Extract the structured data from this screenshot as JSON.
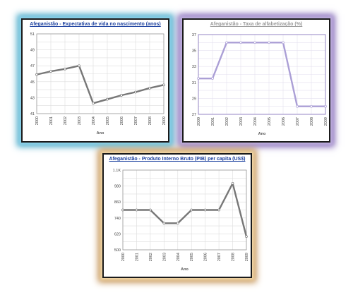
{
  "chart_data": [
    {
      "type": "line",
      "title": "Afeganistão - Expectativa de vida no nascimento (anos)",
      "xlabel": "Ano",
      "ylabel": "",
      "categories": [
        "2000",
        "2001",
        "2002",
        "2003",
        "2004",
        "2005",
        "2006",
        "2007",
        "2008",
        "2009"
      ],
      "series": [
        {
          "values": [
            45.9,
            46.3,
            46.6,
            47.0,
            42.3,
            42.8,
            43.3,
            43.7,
            44.2,
            44.6
          ]
        }
      ],
      "ylim": [
        41,
        51
      ],
      "yticks": [
        "41",
        "43",
        "45",
        "47",
        "49",
        "51"
      ],
      "grid": true,
      "colors": {
        "line": "#777777",
        "marker": "#ffffff",
        "grid": "#dddddd",
        "plot_border": "#999999"
      }
    },
    {
      "type": "line",
      "title": "Afeganistão - Taxa de alfabetização (%)",
      "xlabel": "Ano",
      "ylabel": "",
      "categories": [
        "2000",
        "2001",
        "2002",
        "2003",
        "2004",
        "2005",
        "2006",
        "2007",
        "2008",
        "2009"
      ],
      "series": [
        {
          "values": [
            31.5,
            31.5,
            36.0,
            36.0,
            36.0,
            36.0,
            36.0,
            28.0,
            28.0,
            28.0
          ]
        }
      ],
      "ylim": [
        27,
        37
      ],
      "yticks": [
        "27",
        "29",
        "31",
        "33",
        "35",
        "37"
      ],
      "grid": true,
      "colors": {
        "line": "#ab9fd6",
        "marker": "#ffffff",
        "grid": "#e4e0ef",
        "plot_border": "#7d6cb7"
      }
    },
    {
      "type": "line",
      "title": "Afeganistão - Produto Interno Bruto (PIB) per capita (US$)",
      "xlabel": "Ano",
      "ylabel": "",
      "categories": [
        "2000",
        "2001",
        "2002",
        "2003",
        "2004",
        "2005",
        "2006",
        "2007",
        "2008",
        "2009"
      ],
      "series": [
        {
          "values": [
            800,
            800,
            800,
            700,
            700,
            800,
            800,
            800,
            1000,
            600
          ]
        }
      ],
      "ylim": [
        500,
        1100
      ],
      "yticks": [
        "500",
        "620",
        "740",
        "860",
        "980",
        "1.1K"
      ],
      "grid": true,
      "colors": {
        "line": "#777777",
        "marker": "#ffffff",
        "grid": "#dddddd",
        "plot_border": "#999999"
      }
    }
  ]
}
